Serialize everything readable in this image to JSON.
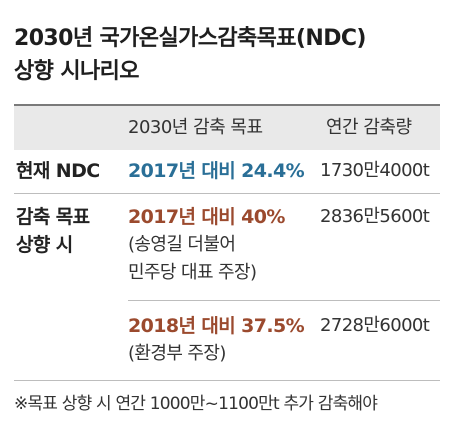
{
  "title": {
    "line1": "2030년 국가온실가스감축목표(NDC)",
    "line2": "상향 시나리오"
  },
  "colors": {
    "current_target": "#2a6f97",
    "raised_target": "#9b4a2e",
    "header_background": "#e9e9e9"
  },
  "table": {
    "headers": {
      "target": "2030년 감축 목표",
      "annual": "연간 감축량"
    },
    "current": {
      "label": "현재 NDC",
      "target": "2017년 대비 24.4%",
      "amount": "1730만4000t"
    },
    "raised": {
      "label_line1": "감축 목표",
      "label_line2": "상향 시",
      "scenarios": [
        {
          "target": "2017년 대비 40%",
          "note_line1": "(송영길 더불어",
          "note_line2": "민주당 대표 주장)",
          "amount": "2836만5600t"
        },
        {
          "target": "2018년 대비 37.5%",
          "note_line1": "(환경부 주장)",
          "amount": "2728만6000t"
        }
      ]
    }
  },
  "footnote": "※목표 상향 시 연간 1000만~1100만t 추가 감축해야"
}
